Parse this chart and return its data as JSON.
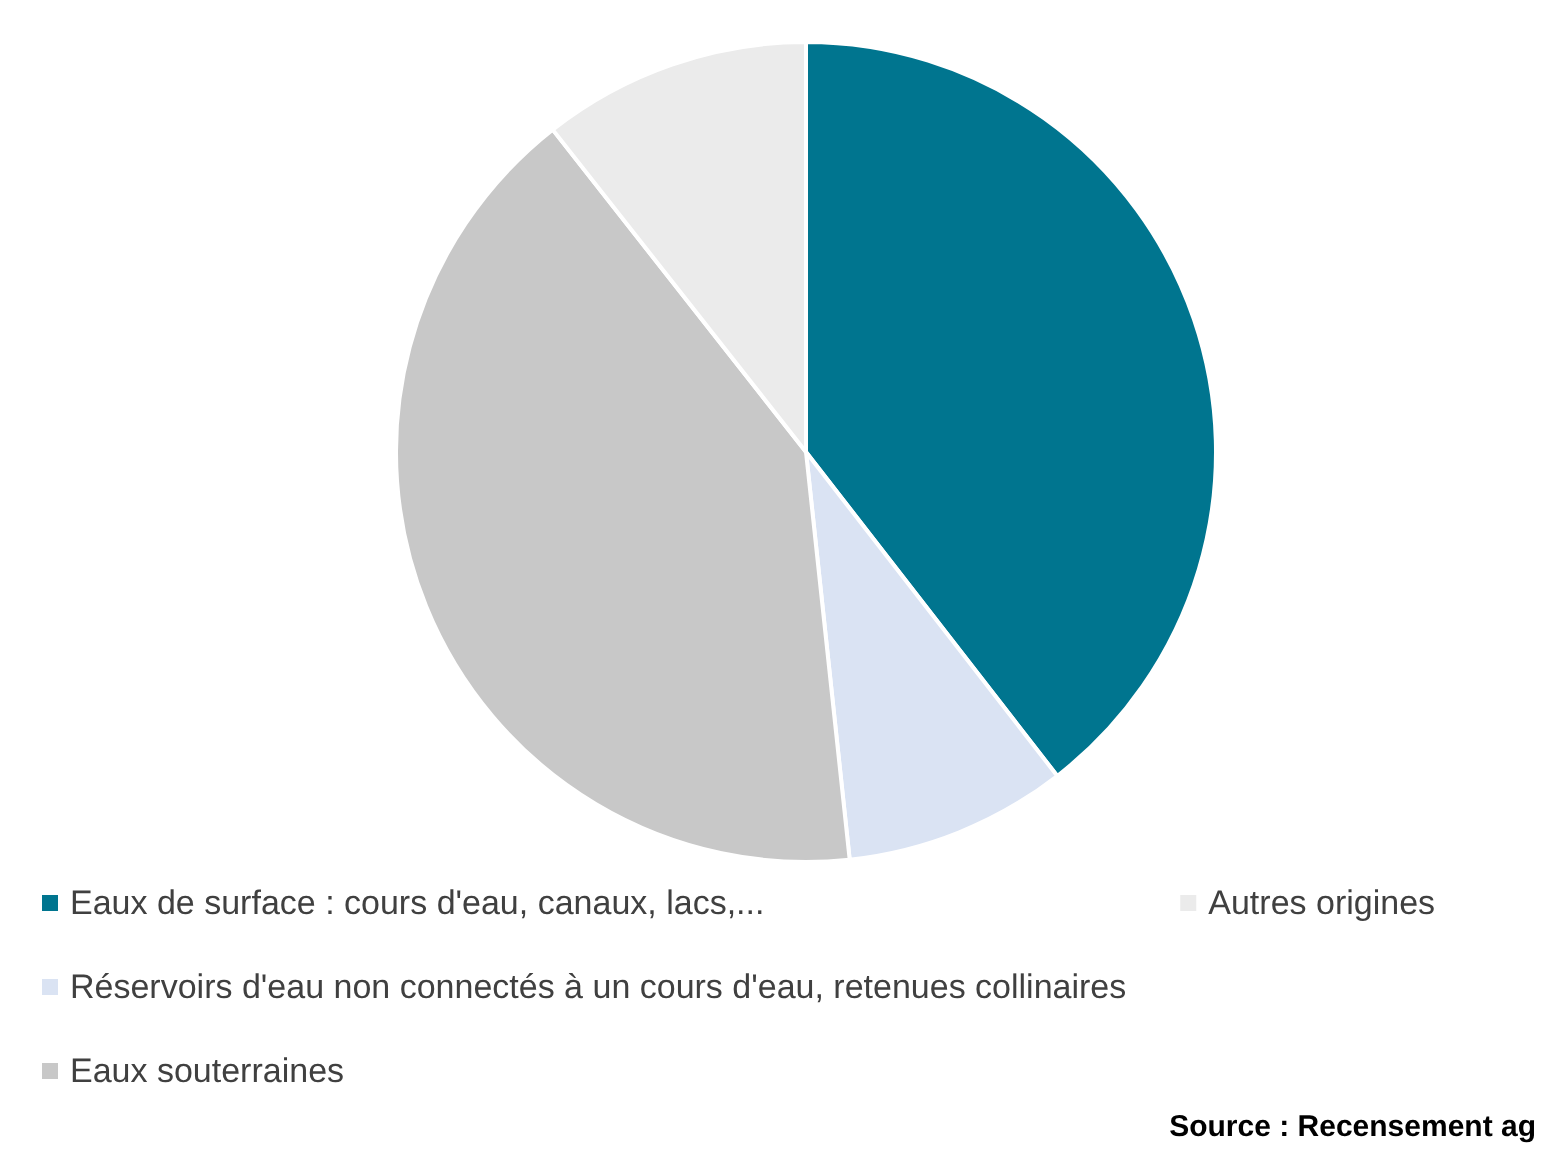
{
  "chart_data": {
    "type": "pie",
    "categories": [
      "Eaux de surface : cours d'eau, canaux, lacs,...",
      "Réservoirs d'eau non connectés à un cours d'eau, retenues collinaires",
      "Eaux souterraines",
      "Autres origines"
    ],
    "values": [
      39.5,
      8.8,
      41.1,
      10.6
    ],
    "colors": [
      "#00758f",
      "#dae3f3",
      "#c8c8c8",
      "#ebebeb"
    ],
    "legend": "bottom left",
    "annotations": [
      "Source : Recensement ag"
    ]
  }
}
